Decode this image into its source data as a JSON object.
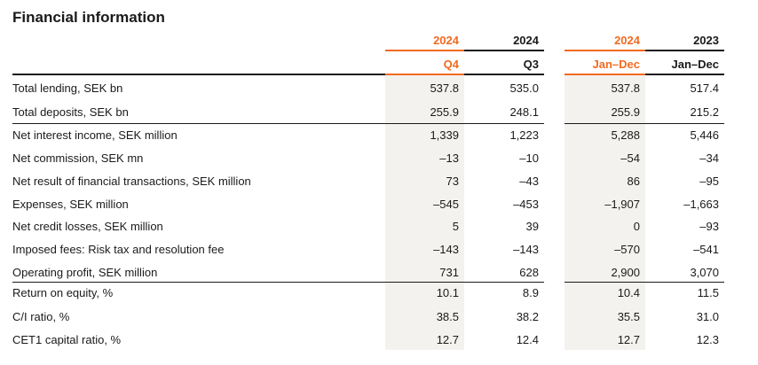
{
  "title": "Financial information",
  "accent_color": "#f26a21",
  "columns": [
    {
      "year": "2024",
      "period": "Q4",
      "highlight": true
    },
    {
      "year": "2024",
      "period": "Q3",
      "highlight": false
    },
    {
      "year": "2024",
      "period": "Jan–Dec",
      "highlight": true
    },
    {
      "year": "2023",
      "period": "Jan–Dec",
      "highlight": false
    }
  ],
  "rows": [
    {
      "label": "Total lending, SEK bn",
      "values": [
        "537.8",
        "535.0",
        "537.8",
        "517.4"
      ]
    },
    {
      "label": "Total deposits, SEK bn",
      "values": [
        "255.9",
        "248.1",
        "255.9",
        "215.2"
      ]
    },
    {
      "label": "Net interest income, SEK million",
      "values": [
        "1,339",
        "1,223",
        "5,288",
        "5,446"
      ]
    },
    {
      "label": "Net commission, SEK mn",
      "values": [
        "–13",
        "–10",
        "–54",
        "–34"
      ]
    },
    {
      "label": "Net result of financial transactions, SEK million",
      "values": [
        "73",
        "–43",
        "86",
        "–95"
      ]
    },
    {
      "label": "Expenses, SEK million",
      "values": [
        "–545",
        "–453",
        "–1,907",
        "–1,663"
      ]
    },
    {
      "label": "Net credit losses, SEK million",
      "values": [
        "5",
        "39",
        "0",
        "–93"
      ]
    },
    {
      "label": "Imposed fees: Risk tax and resolution fee",
      "values": [
        "–143",
        "–143",
        "–570",
        "–541"
      ]
    },
    {
      "label": "Operating profit, SEK million",
      "values": [
        "731",
        "628",
        "2,900",
        "3,070"
      ]
    },
    {
      "label": "Return on equity, %",
      "values": [
        "10.1",
        "8.9",
        "10.4",
        "11.5"
      ]
    },
    {
      "label": "C/I ratio, %",
      "values": [
        "38.5",
        "38.2",
        "35.5",
        "31.0"
      ]
    },
    {
      "label": "CET1 capital ratio, %",
      "values": [
        "12.7",
        "12.4",
        "12.7",
        "12.3"
      ]
    }
  ]
}
